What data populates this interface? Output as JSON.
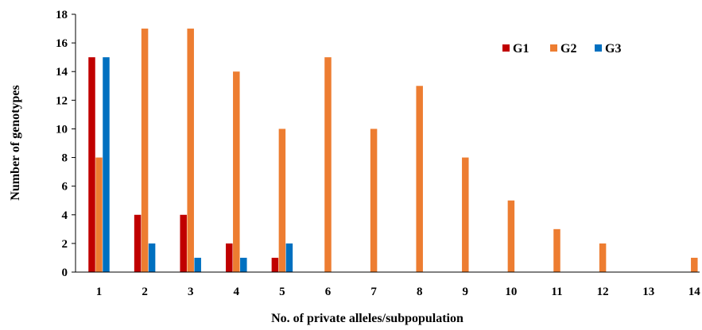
{
  "chart_data": {
    "type": "bar",
    "title": "",
    "xlabel": "No. of private alleles/subpopulation",
    "ylabel": "Number of genotypes",
    "ylim": [
      0,
      18
    ],
    "yticks": [
      "0",
      "2",
      "4",
      "6",
      "8",
      "10",
      "12",
      "14",
      "16",
      "18"
    ],
    "categories": [
      "1",
      "2",
      "3",
      "4",
      "5",
      "6",
      "7",
      "8",
      "9",
      "10",
      "11",
      "12",
      "13",
      "14"
    ],
    "series": [
      {
        "name": "G1",
        "color": "#c00000",
        "values": [
          15,
          4,
          4,
          2,
          1,
          0,
          0,
          0,
          0,
          0,
          0,
          0,
          0,
          0
        ]
      },
      {
        "name": "G2",
        "color": "#ed7d31",
        "values": [
          8,
          17,
          17,
          14,
          10,
          15,
          10,
          13,
          8,
          5,
          3,
          2,
          0,
          1
        ]
      },
      {
        "name": "G3",
        "color": "#0070c0",
        "values": [
          15,
          2,
          1,
          1,
          2,
          0,
          0,
          0,
          0,
          0,
          0,
          0,
          0,
          0
        ]
      }
    ],
    "grid": false,
    "legend_position": "top-right"
  }
}
